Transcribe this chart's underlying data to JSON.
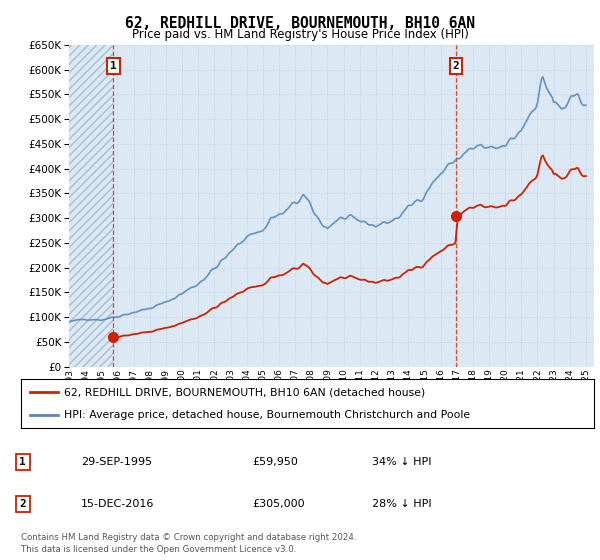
{
  "title": "62, REDHILL DRIVE, BOURNEMOUTH, BH10 6AN",
  "subtitle": "Price paid vs. HM Land Registry's House Price Index (HPI)",
  "ytick_values": [
    0,
    50000,
    100000,
    150000,
    200000,
    250000,
    300000,
    350000,
    400000,
    450000,
    500000,
    550000,
    600000,
    650000
  ],
  "sale1_date": 1995.75,
  "sale1_price": 59950,
  "sale1_label": "1",
  "sale2_date": 2016.96,
  "sale2_price": 305000,
  "sale2_label": "2",
  "background_color": "#dce9f5",
  "hpi_line_color": "#5588bb",
  "sale_line_color": "#cc2200",
  "sale_dot_color": "#cc2200",
  "grid_color": "#c8d8e8",
  "xmin": 1993.0,
  "xmax": 2025.5,
  "ymin": 0,
  "ymax": 650000,
  "legend_line1": "62, REDHILL DRIVE, BOURNEMOUTH, BH10 6AN (detached house)",
  "legend_line2": "HPI: Average price, detached house, Bournemouth Christchurch and Poole",
  "table_row1": [
    "1",
    "29-SEP-1995",
    "£59,950",
    "34% ↓ HPI"
  ],
  "table_row2": [
    "2",
    "15-DEC-2016",
    "£305,000",
    "28% ↓ HPI"
  ],
  "footnote": "Contains HM Land Registry data © Crown copyright and database right 2024.\nThis data is licensed under the Open Government Licence v3.0."
}
